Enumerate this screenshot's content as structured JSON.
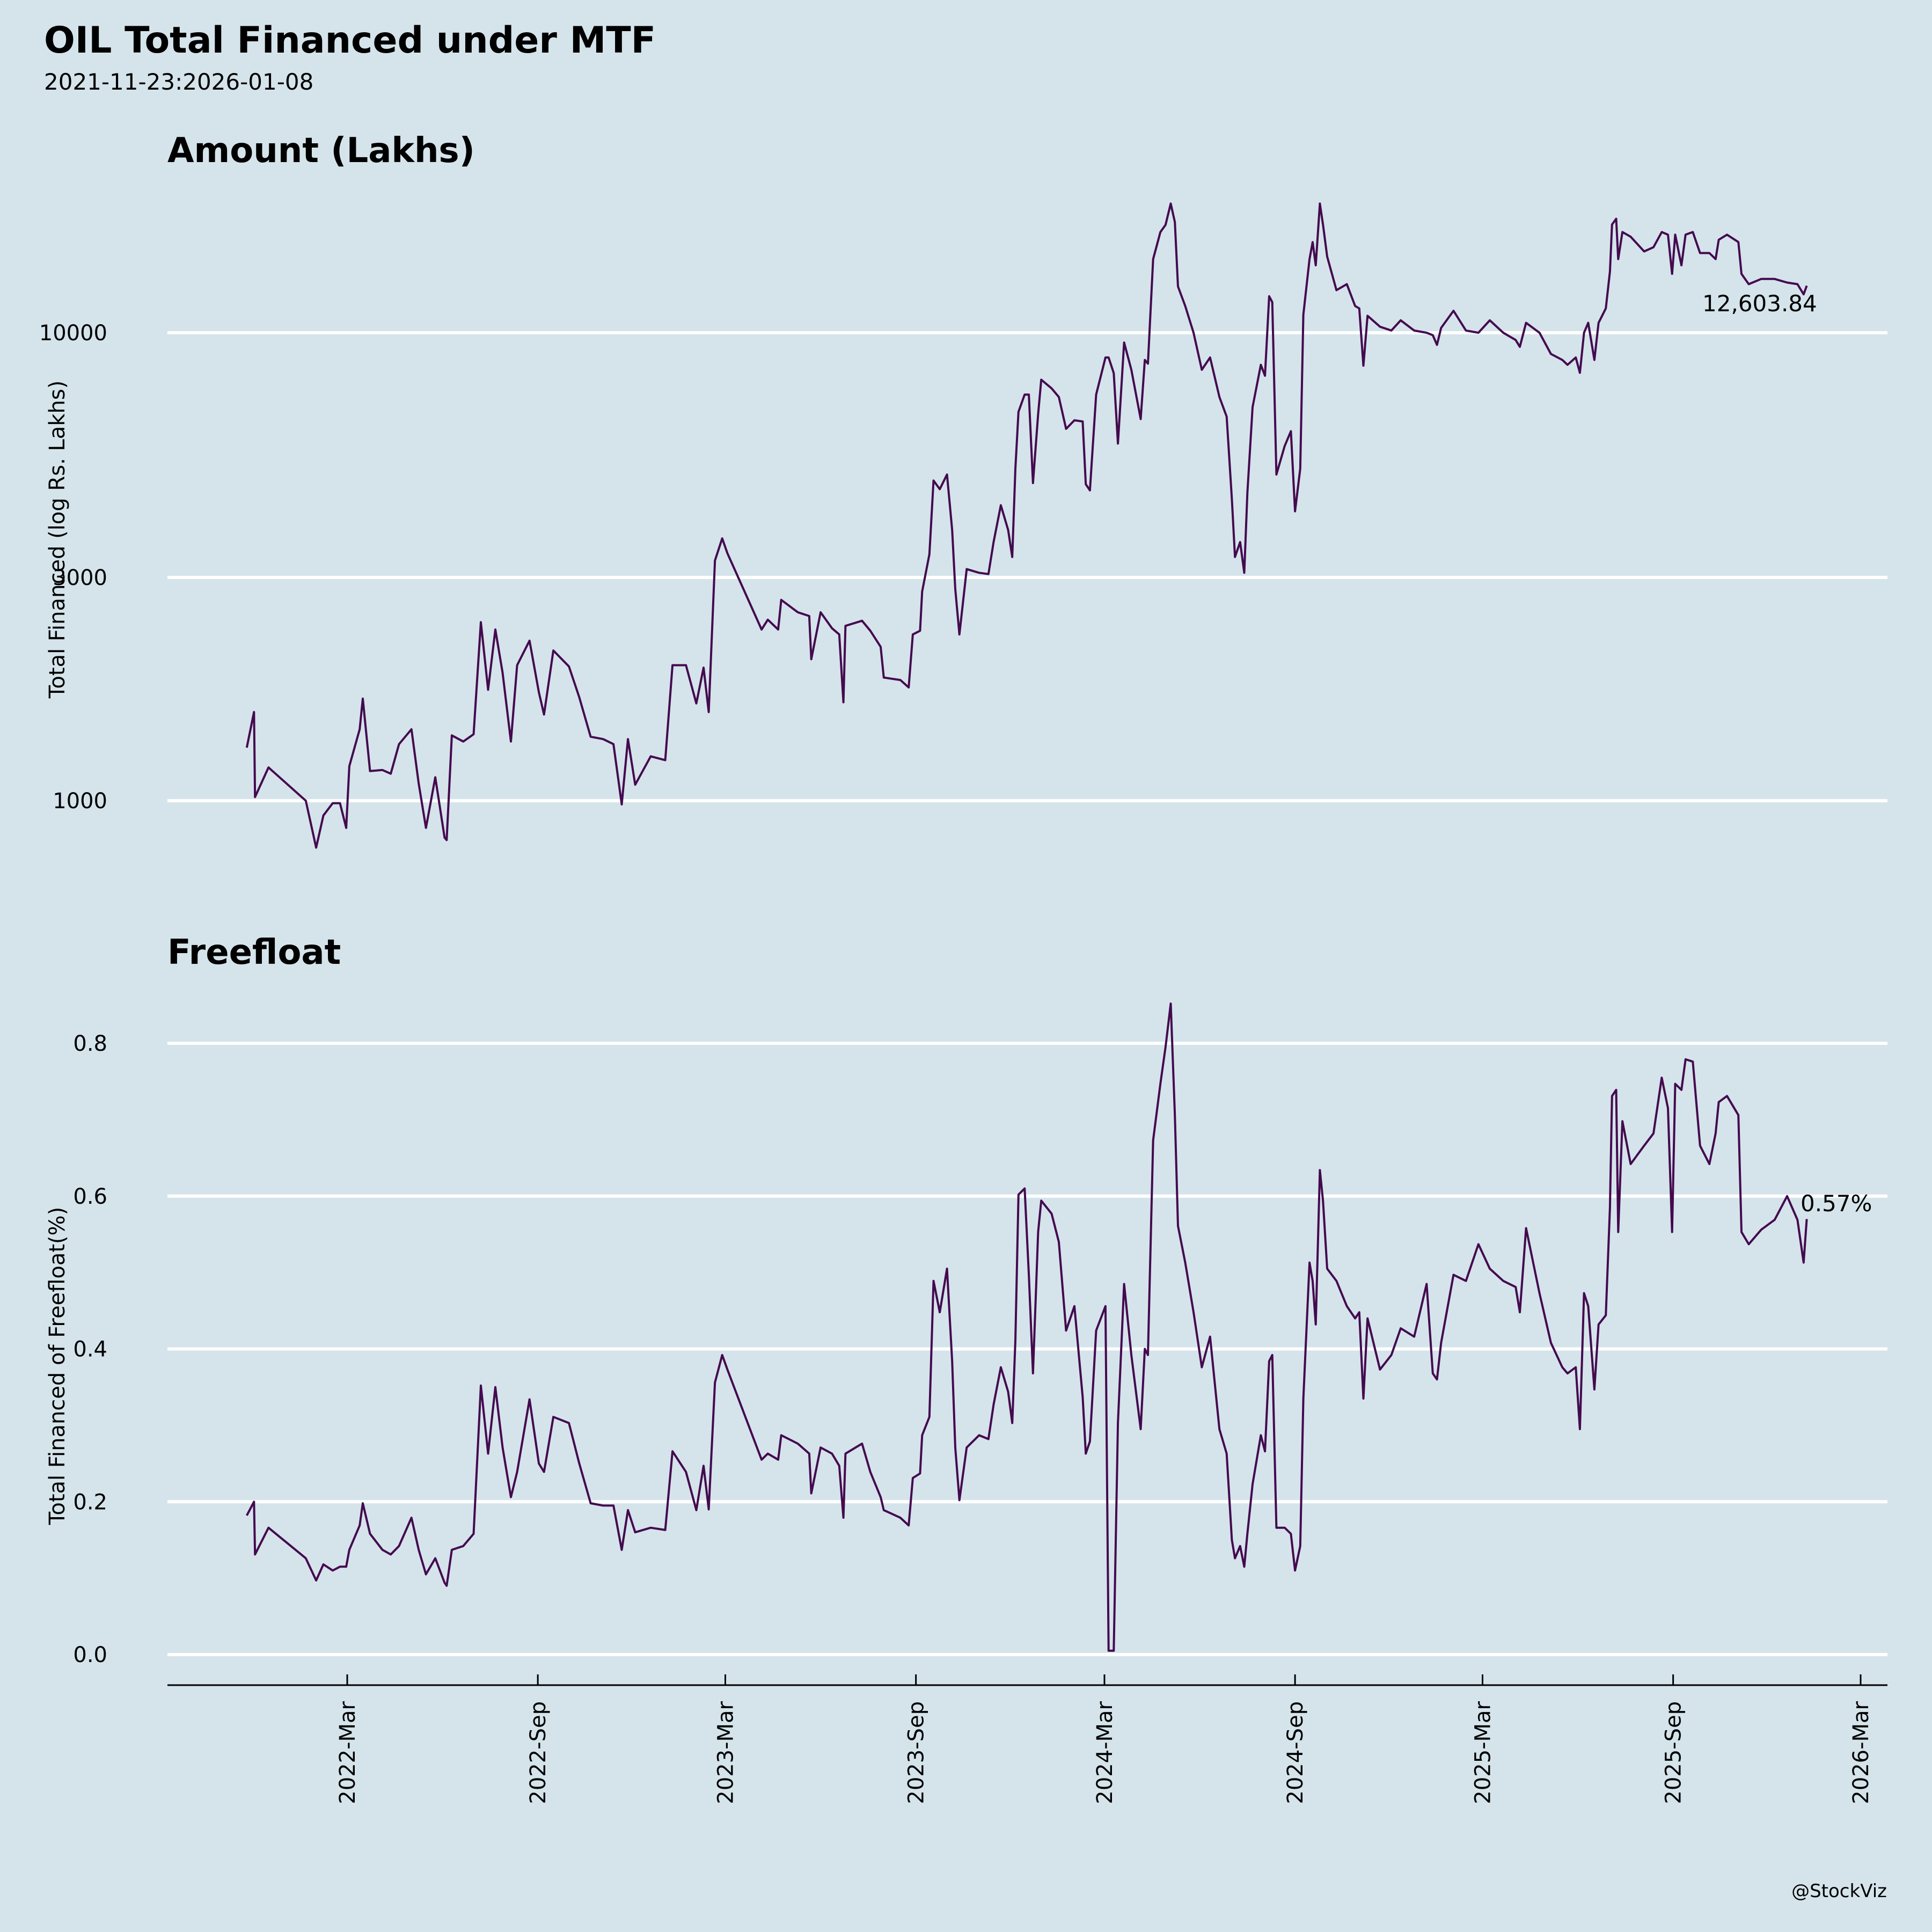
{
  "header": {
    "title": "OIL Total Financed under MTF",
    "subtitle": "2021-11-23:2026-01-08"
  },
  "credit": "@StockViz",
  "colors": {
    "background": "#d5e4eb",
    "line": "#440a4f",
    "grid": "#ffffff",
    "axis": "#000000"
  },
  "chart_data": [
    {
      "type": "line",
      "title": "Amount (Lakhs)",
      "ylabel": "Total Financed (log Rs. Lakhs)",
      "xlabel": "",
      "yscale": "log",
      "ylim": [
        700,
        21000
      ],
      "yticks": [
        1000,
        3000,
        10000
      ],
      "ytick_labels": [
        "1000",
        "3000",
        "10000"
      ],
      "grid": true,
      "last_value_label": "12,603.84",
      "series": [
        {
          "name": "Amount (Lakhs)",
          "values": [
            1298,
            1547,
            1018,
            1178,
            1000,
            794,
            930,
            988,
            988,
            875,
            1185,
            1421,
            1653,
            1157,
            1163,
            1142,
            1321,
            1421,
            1088,
            875,
            1122,
            834,
            824,
            1379,
            1338,
            1387,
            2407,
            1726,
            2322,
            1877,
            1338,
            1948,
            2198,
            1705,
            1528,
            2094,
            1936,
            1663,
            1370,
            1354,
            1321,
            982,
            1354,
            1082,
            1244,
            1221,
            1948,
            1948,
            1614,
            1925,
            1547,
            3260,
            3635,
            3379,
            2322,
            2437,
            2322,
            2686,
            2527,
            2481,
            2006,
            2527,
            2336,
            2266,
            1623,
            2364,
            2424,
            2308,
            2132,
            1833,
            1811,
            1746,
            2266,
            2308,
            2800,
            3361,
            4832,
            4631,
            4978,
            3790,
            2833,
            2266,
            3126,
            3069,
            3050,
            3570,
            4280,
            3790,
            3317,
            5123,
            6777,
            7377,
            7377,
            4773,
            6696,
            7936,
            7604,
            7289,
            6231,
            6501,
            6462,
            4745,
            4605,
            7377,
            8855,
            8855,
            8200,
            5797,
            9532,
            8335,
            6540,
            8748,
            8589,
            14366,
            16413,
            17000,
            18880,
            17233,
            12557,
            11406,
            10000,
            8335,
            8855,
            7289,
            6619,
            4412,
            3317,
            3570,
            3069,
            4546,
            6937,
            8540,
            8093,
            11967,
            11620,
            4978,
            5727,
            6160,
            4154,
            5123,
            10930,
            14366,
            15620,
            13936,
            18880,
            17030,
            14540,
            12330,
            12700,
            11406,
            11270,
            8500,
            10870,
            10300,
            10110,
            10630,
            10110,
            10000,
            9880,
            9420,
            10240,
            11140,
            10110,
            10000,
            10630,
            10000,
            9650,
            9330,
            10500,
            10000,
            9010,
            8750,
            8540,
            8855,
            8210,
            10000,
            10500,
            8750,
            10500,
            11270,
            13520,
            17030,
            17520,
            14366,
            16413,
            16040,
            14920,
            15230,
            16413,
            16200,
            13360,
            16200,
            13936,
            16200,
            16413,
            14800,
            14800,
            14366,
            15800,
            16200,
            15620,
            13360,
            12700,
            13030,
            13030,
            12800,
            12700,
            12080,
            12603.84
          ]
        }
      ]
    },
    {
      "type": "line",
      "title": "Freefloat",
      "ylabel": "Total Financed of Freefloat(%)",
      "xlabel": "",
      "yscale": "linear",
      "ylim": [
        -0.04,
        0.88
      ],
      "yticks": [
        0.0,
        0.2,
        0.4,
        0.6,
        0.8
      ],
      "ytick_labels": [
        "0.0",
        "0.2",
        "0.4",
        "0.6",
        "0.8"
      ],
      "grid": true,
      "last_value_label": "0.57%",
      "series": [
        {
          "name": "Freefloat %",
          "values": [
            0.182,
            0.2,
            0.131,
            0.166,
            0.126,
            0.097,
            0.118,
            0.11,
            0.115,
            0.115,
            0.137,
            0.169,
            0.198,
            0.158,
            0.137,
            0.131,
            0.142,
            0.179,
            0.137,
            0.105,
            0.126,
            0.094,
            0.09,
            0.137,
            0.142,
            0.158,
            0.352,
            0.263,
            0.35,
            0.271,
            0.206,
            0.239,
            0.334,
            0.25,
            0.239,
            0.311,
            0.303,
            0.25,
            0.198,
            0.195,
            0.195,
            0.137,
            0.189,
            0.16,
            0.166,
            0.163,
            0.266,
            0.239,
            0.189,
            0.247,
            0.19,
            0.356,
            0.392,
            0.373,
            0.255,
            0.263,
            0.255,
            0.287,
            0.276,
            0.263,
            0.211,
            0.271,
            0.263,
            0.247,
            0.179,
            0.263,
            0.276,
            0.239,
            0.206,
            0.189,
            0.179,
            0.169,
            0.231,
            0.237,
            0.287,
            0.311,
            0.489,
            0.448,
            0.505,
            0.384,
            0.271,
            0.202,
            0.271,
            0.287,
            0.282,
            0.327,
            0.376,
            0.344,
            0.303,
            0.411,
            0.602,
            0.61,
            0.497,
            0.368,
            0.553,
            0.594,
            0.577,
            0.54,
            0.424,
            0.456,
            0.337,
            0.263,
            0.279,
            0.424,
            0.456,
            0.005,
            0.005,
            0.303,
            0.485,
            0.392,
            0.295,
            0.4,
            0.392,
            0.673,
            0.747,
            0.795,
            0.852,
            0.706,
            0.561,
            0.513,
            0.448,
            0.376,
            0.416,
            0.295,
            0.263,
            0.15,
            0.126,
            0.142,
            0.115,
            0.158,
            0.223,
            0.287,
            0.266,
            0.384,
            0.392,
            0.166,
            0.166,
            0.158,
            0.11,
            0.142,
            0.335,
            0.513,
            0.489,
            0.432,
            0.634,
            0.594,
            0.505,
            0.489,
            0.456,
            0.44,
            0.448,
            0.335,
            0.44,
            0.373,
            0.392,
            0.427,
            0.416,
            0.485,
            0.368,
            0.36,
            0.408,
            0.497,
            0.489,
            0.537,
            0.505,
            0.489,
            0.481,
            0.448,
            0.558,
            0.473,
            0.408,
            0.376,
            0.368,
            0.376,
            0.295,
            0.473,
            0.456,
            0.347,
            0.432,
            0.444,
            0.585,
            0.731,
            0.739,
            0.553,
            0.698,
            0.642,
            0.666,
            0.682,
            0.755,
            0.715,
            0.553,
            0.747,
            0.739,
            0.779,
            0.776,
            0.666,
            0.642,
            0.682,
            0.723,
            0.731,
            0.706,
            0.553,
            0.537,
            0.556,
            0.569,
            0.6,
            0.569,
            0.513,
            0.57
          ]
        }
      ]
    }
  ],
  "x": [
    "2021-11-24",
    "2021-12-01",
    "2021-12-02",
    "2021-12-15",
    "2022-01-20",
    "2022-01-30",
    "2022-02-06",
    "2022-02-15",
    "2022-02-22",
    "2022-02-28",
    "2022-03-03",
    "2022-03-13",
    "2022-03-16",
    "2022-03-23",
    "2022-04-04",
    "2022-04-12",
    "2022-04-20",
    "2022-05-02",
    "2022-05-09",
    "2022-05-16",
    "2022-05-25",
    "2022-06-03",
    "2022-06-05",
    "2022-06-10",
    "2022-06-21",
    "2022-07-01",
    "2022-07-08",
    "2022-07-15",
    "2022-07-22",
    "2022-07-29",
    "2022-08-06",
    "2022-08-12",
    "2022-08-24",
    "2022-09-02",
    "2022-09-07",
    "2022-09-16",
    "2022-10-01",
    "2022-10-11",
    "2022-10-22",
    "2022-11-03",
    "2022-11-13",
    "2022-11-21",
    "2022-11-27",
    "2022-12-04",
    "2022-12-19",
    "2023-01-02",
    "2023-01-09",
    "2023-01-22",
    "2023-02-01",
    "2023-02-08",
    "2023-02-13",
    "2023-02-19",
    "2023-02-26",
    "2023-03-03",
    "2023-04-05",
    "2023-04-11",
    "2023-04-21",
    "2023-04-24",
    "2023-05-10",
    "2023-05-21",
    "2023-05-23",
    "2023-06-01",
    "2023-06-12",
    "2023-06-19",
    "2023-06-23",
    "2023-06-25",
    "2023-07-11",
    "2023-07-19",
    "2023-07-29",
    "2023-08-01",
    "2023-08-17",
    "2023-08-25",
    "2023-08-29",
    "2023-09-05",
    "2023-09-07",
    "2023-09-14",
    "2023-09-18",
    "2023-09-24",
    "2023-10-01",
    "2023-10-06",
    "2023-10-09",
    "2023-10-13",
    "2023-10-20",
    "2023-11-01",
    "2023-11-10",
    "2023-11-15",
    "2023-11-22",
    "2023-11-29",
    "2023-12-03",
    "2023-12-06",
    "2023-12-09",
    "2023-12-15",
    "2023-12-19",
    "2023-12-23",
    "2023-12-28",
    "2023-12-31",
    "2024-01-10",
    "2024-01-17",
    "2024-01-24",
    "2024-02-01",
    "2024-02-09",
    "2024-02-12",
    "2024-02-16",
    "2024-02-22",
    "2024-03-02",
    "2024-03-05",
    "2024-03-10",
    "2024-03-14",
    "2024-03-20",
    "2024-03-27",
    "2024-04-05",
    "2024-04-09",
    "2024-04-12",
    "2024-04-17",
    "2024-04-24",
    "2024-04-29",
    "2024-05-04",
    "2024-05-08",
    "2024-05-11",
    "2024-05-18",
    "2024-05-26",
    "2024-06-03",
    "2024-06-11",
    "2024-06-20",
    "2024-06-27",
    "2024-07-02",
    "2024-07-05",
    "2024-07-10",
    "2024-07-14",
    "2024-07-17",
    "2024-07-22",
    "2024-07-30",
    "2024-08-03",
    "2024-08-07",
    "2024-08-10",
    "2024-08-14",
    "2024-08-22",
    "2024-08-28",
    "2024-09-01",
    "2024-09-06",
    "2024-09-09",
    "2024-09-15",
    "2024-09-18",
    "2024-09-21",
    "2024-09-25",
    "2024-09-28",
    "2024-10-02",
    "2024-10-11",
    "2024-10-21",
    "2024-10-29",
    "2024-11-02",
    "2024-11-06",
    "2024-11-10",
    "2024-11-22",
    "2024-12-03",
    "2024-12-12",
    "2024-12-25",
    "2025-01-06",
    "2025-01-12",
    "2025-01-16",
    "2025-01-20",
    "2025-02-01",
    "2025-02-13",
    "2025-02-25",
    "2025-03-08",
    "2025-03-21",
    "2025-04-02",
    "2025-04-06",
    "2025-04-12",
    "2025-04-25",
    "2025-05-06",
    "2025-05-17",
    "2025-05-22",
    "2025-05-30",
    "2025-06-03",
    "2025-06-07",
    "2025-06-11",
    "2025-06-17",
    "2025-06-21",
    "2025-06-28",
    "2025-07-02",
    "2025-07-04",
    "2025-07-08",
    "2025-07-10",
    "2025-07-14",
    "2025-07-22",
    "2025-08-04",
    "2025-08-13",
    "2025-08-21",
    "2025-08-27",
    "2025-08-31",
    "2025-09-03",
    "2025-09-09",
    "2025-09-13",
    "2025-09-20",
    "2025-09-27",
    "2025-10-06",
    "2025-10-12",
    "2025-10-15",
    "2025-10-23",
    "2025-11-03",
    "2025-11-06",
    "2025-11-13",
    "2025-11-25",
    "2025-12-08",
    "2025-12-20",
    "2025-12-30",
    "2026-01-05",
    "2026-01-08"
  ],
  "xaxis": {
    "ticks": [
      "2022-03-01",
      "2022-09-01",
      "2023-03-01",
      "2023-09-01",
      "2024-03-01",
      "2024-09-01",
      "2025-03-01",
      "2025-09-01",
      "2026-03-01"
    ],
    "tick_labels": [
      "2022-Mar",
      "2022-Sep",
      "2023-Mar",
      "2023-Sep",
      "2024-Mar",
      "2024-Sep",
      "2025-Mar",
      "2025-Sep",
      "2026-Mar"
    ],
    "range": [
      "2021-10-01",
      "2026-03-20"
    ]
  }
}
